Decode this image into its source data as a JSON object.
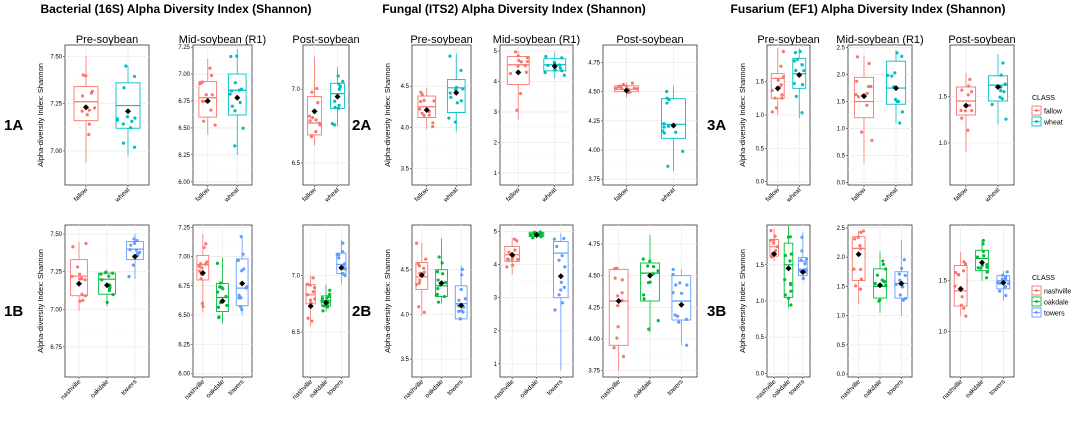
{
  "figure": {
    "groups": [
      {
        "title": "Bacterial (16S) Alpha Diversity Index (Shannon)",
        "row_labels": [
          "1A",
          "1B"
        ]
      },
      {
        "title": "Fungal (ITS2) Alpha Diversity Index (Shannon)",
        "row_labels": [
          "2A",
          "2B"
        ]
      },
      {
        "title": "Fusarium (EF1) Alpha Diversity Index (Shannon)",
        "row_labels": [
          "3A",
          "3B"
        ]
      }
    ],
    "legends": [
      {
        "title": "CLASS",
        "items": [
          {
            "label": "fallow",
            "color": "#F8766D"
          },
          {
            "label": "wheat",
            "color": "#00BFC4"
          }
        ]
      },
      {
        "title": "CLASS",
        "items": [
          {
            "label": "nashville",
            "color": "#F8766D"
          },
          {
            "label": "oakdale",
            "color": "#00BA38"
          },
          {
            "label": "towers",
            "color": "#619CFF"
          }
        ]
      }
    ]
  },
  "chart_data": [
    {
      "id": "1A-pre",
      "type": "box",
      "title": "Pre-soybean",
      "ylabel": "Alpha-diversity Index: Shannon",
      "ylim": [
        6.82,
        7.56
      ],
      "yticks": [
        7.0,
        7.25,
        7.5
      ],
      "categories": [
        "fallow",
        "wheat"
      ],
      "boxes": [
        {
          "q1": 7.16,
          "median": 7.26,
          "q3": 7.34,
          "lo": 6.94,
          "hi": 7.5,
          "mean": 7.23
        },
        {
          "q1": 7.12,
          "median": 7.24,
          "q3": 7.36,
          "lo": 6.97,
          "hi": 7.45,
          "mean": 7.21
        }
      ]
    },
    {
      "id": "1A-mid",
      "type": "box",
      "title": "Mid-soybean (R1)",
      "ylim": [
        5.97,
        7.27
      ],
      "yticks": [
        6.0,
        6.25,
        6.5,
        6.75,
        7.0,
        7.25
      ],
      "categories": [
        "fallow",
        "wheat"
      ],
      "boxes": [
        {
          "q1": 6.6,
          "median": 6.78,
          "q3": 6.93,
          "lo": 6.44,
          "hi": 7.14,
          "mean": 6.75
        },
        {
          "q1": 6.62,
          "median": 6.85,
          "q3": 7.0,
          "lo": 6.25,
          "hi": 7.23,
          "mean": 6.78
        }
      ]
    },
    {
      "id": "1A-post",
      "type": "box",
      "title": "Post-soybean",
      "ylim": [
        6.35,
        7.3
      ],
      "yticks": [
        6.5,
        7.0
      ],
      "categories": [
        "fallow",
        "wheat"
      ],
      "boxes": [
        {
          "q1": 6.69,
          "median": 6.77,
          "q3": 6.95,
          "lo": 6.62,
          "hi": 7.22,
          "mean": 6.85
        },
        {
          "q1": 6.87,
          "median": 6.97,
          "q3": 7.04,
          "lo": 6.75,
          "hi": 7.15,
          "mean": 6.95
        }
      ]
    },
    {
      "id": "1B-pre",
      "type": "box",
      "ylabel": "Alpha-diversity Index: Shannon",
      "ylim": [
        6.55,
        7.56
      ],
      "yticks": [
        6.75,
        7.0,
        7.25,
        7.5
      ],
      "categories": [
        "nashville",
        "oakdale",
        "towers"
      ],
      "boxes": [
        {
          "q1": 7.09,
          "median": 7.22,
          "q3": 7.33,
          "lo": 6.99,
          "hi": 7.45,
          "mean": 7.17
        },
        {
          "q1": 7.1,
          "median": 7.2,
          "q3": 7.24,
          "lo": 7.02,
          "hi": 7.26,
          "mean": 7.16
        },
        {
          "q1": 7.33,
          "median": 7.4,
          "q3": 7.45,
          "lo": 7.2,
          "hi": 7.5,
          "mean": 7.35
        }
      ]
    },
    {
      "id": "1B-mid",
      "type": "box",
      "ylim": [
        5.97,
        7.27
      ],
      "yticks": [
        6.0,
        6.25,
        6.5,
        6.75,
        7.0,
        7.25
      ],
      "categories": [
        "nashville",
        "oakdale",
        "towers"
      ],
      "boxes": [
        {
          "q1": 6.8,
          "median": 6.93,
          "q3": 7.01,
          "lo": 6.52,
          "hi": 7.19,
          "mean": 6.86
        },
        {
          "q1": 6.53,
          "median": 6.65,
          "q3": 6.77,
          "lo": 6.43,
          "hi": 6.99,
          "mean": 6.62
        },
        {
          "q1": 6.58,
          "median": 6.73,
          "q3": 6.98,
          "lo": 6.5,
          "hi": 7.18,
          "mean": 6.77
        }
      ]
    },
    {
      "id": "1B-post",
      "type": "box",
      "ylim": [
        6.1,
        7.45
      ],
      "yticks": [
        6.5,
        7.0
      ],
      "categories": [
        "nashville",
        "oakdale",
        "towers"
      ],
      "boxes": [
        {
          "q1": 6.75,
          "median": 6.83,
          "q3": 6.92,
          "lo": 6.55,
          "hi": 7.0,
          "mean": 6.73
        },
        {
          "q1": 6.73,
          "median": 6.78,
          "q3": 6.82,
          "lo": 6.68,
          "hi": 6.92,
          "mean": 6.76
        },
        {
          "q1": 7.02,
          "median": 7.1,
          "q3": 7.2,
          "lo": 6.92,
          "hi": 7.32,
          "mean": 7.07
        }
      ]
    },
    {
      "id": "2A-pre",
      "type": "box",
      "title": "Pre-soybean",
      "ylabel": "Alpha-diversity Index: Shannon",
      "ylim": [
        3.3,
        5.0
      ],
      "yticks": [
        3.5,
        4.0,
        4.5
      ],
      "categories": [
        "fallow",
        "wheat"
      ],
      "boxes": [
        {
          "q1": 4.12,
          "median": 4.25,
          "q3": 4.38,
          "lo": 3.98,
          "hi": 4.48,
          "mean": 4.21
        },
        {
          "q1": 4.18,
          "median": 4.48,
          "q3": 4.58,
          "lo": 3.95,
          "hi": 4.9,
          "mean": 4.42
        }
      ]
    },
    {
      "id": "2A-mid",
      "type": "box",
      "title": "Mid-soybean (R1)",
      "ylim": [
        0.6,
        5.2
      ],
      "yticks": [
        1,
        2,
        3,
        4,
        5
      ],
      "categories": [
        "fallow",
        "wheat"
      ],
      "boxes": [
        {
          "q1": 3.9,
          "median": 4.55,
          "q3": 4.82,
          "lo": 2.75,
          "hi": 5.0,
          "mean": 4.3
        },
        {
          "q1": 4.35,
          "median": 4.55,
          "q3": 4.75,
          "lo": 4.1,
          "hi": 4.95,
          "mean": 4.5
        }
      ]
    },
    {
      "id": "2A-post",
      "type": "box",
      "title": "Post-soybean",
      "ylim": [
        3.7,
        4.9
      ],
      "yticks": [
        3.75,
        4.0,
        4.25,
        4.5,
        4.75
      ],
      "categories": [
        "fallow",
        "wheat"
      ],
      "boxes": [
        {
          "q1": 4.5,
          "median": 4.52,
          "q3": 4.55,
          "lo": 4.45,
          "hi": 4.58,
          "mean": 4.51
        },
        {
          "q1": 4.1,
          "median": 4.22,
          "q3": 4.44,
          "lo": 3.82,
          "hi": 4.55,
          "mean": 4.21
        }
      ]
    },
    {
      "id": "2B-pre",
      "type": "box",
      "ylabel": "Alpha-diversity Index: Shannon",
      "ylim": [
        3.3,
        5.0
      ],
      "yticks": [
        3.5,
        4.0,
        4.5
      ],
      "categories": [
        "nashville",
        "oakdale",
        "towers"
      ],
      "boxes": [
        {
          "q1": 4.28,
          "median": 4.42,
          "q3": 4.58,
          "lo": 3.98,
          "hi": 4.8,
          "mean": 4.44
        },
        {
          "q1": 4.2,
          "median": 4.32,
          "q3": 4.5,
          "lo": 4.12,
          "hi": 4.85,
          "mean": 4.35
        },
        {
          "q1": 3.95,
          "median": 4.12,
          "q3": 4.32,
          "lo": 3.95,
          "hi": 4.55,
          "mean": 4.1
        }
      ]
    },
    {
      "id": "2B-mid",
      "type": "box",
      "ylim": [
        0.6,
        5.2
      ],
      "yticks": [
        1,
        2,
        3,
        4,
        5
      ],
      "categories": [
        "nashville",
        "oakdale",
        "towers"
      ],
      "boxes": [
        {
          "q1": 4.1,
          "median": 4.3,
          "q3": 4.55,
          "lo": 3.7,
          "hi": 4.8,
          "mean": 4.3
        },
        {
          "q1": 4.85,
          "median": 4.9,
          "q3": 4.98,
          "lo": 4.8,
          "hi": 5.0,
          "mean": 4.9
        },
        {
          "q1": 3.0,
          "median": 4.35,
          "q3": 4.7,
          "lo": 0.8,
          "hi": 4.95,
          "mean": 3.65
        }
      ]
    },
    {
      "id": "2B-post",
      "type": "box",
      "ylim": [
        3.7,
        4.9
      ],
      "yticks": [
        3.75,
        4.0,
        4.25,
        4.5,
        4.75
      ],
      "categories": [
        "nashville",
        "oakdale",
        "towers"
      ],
      "boxes": [
        {
          "q1": 3.95,
          "median": 4.3,
          "q3": 4.55,
          "lo": 3.75,
          "hi": 4.56,
          "mean": 4.3
        },
        {
          "q1": 4.3,
          "median": 4.52,
          "q3": 4.6,
          "lo": 4.05,
          "hi": 4.82,
          "mean": 4.5
        },
        {
          "q1": 4.15,
          "median": 4.3,
          "q3": 4.5,
          "lo": 3.95,
          "hi": 4.55,
          "mean": 4.27
        }
      ]
    },
    {
      "id": "3A-pre",
      "type": "box",
      "title": "Pre-soybean",
      "ylabel": "Alpha-diversity Index: Shannon",
      "ylim": [
        -0.05,
        2.05
      ],
      "yticks": [
        0.0,
        0.5,
        1.0,
        1.5
      ],
      "categories": [
        "fallow",
        "wheat"
      ],
      "boxes": [
        {
          "q1": 1.25,
          "median": 1.55,
          "q3": 1.62,
          "lo": 1.0,
          "hi": 2.0,
          "mean": 1.4
        },
        {
          "q1": 1.4,
          "median": 1.62,
          "q3": 1.85,
          "lo": 0.95,
          "hi": 2.0,
          "mean": 1.6
        }
      ]
    },
    {
      "id": "3A-mid",
      "type": "box",
      "title": "Mid-soybean (R1)",
      "ylim": [
        -0.05,
        2.55
      ],
      "yticks": [
        0.0,
        0.5,
        1.0,
        1.5,
        2.0,
        2.5
      ],
      "categories": [
        "fallow",
        "wheat"
      ],
      "boxes": [
        {
          "q1": 1.2,
          "median": 1.5,
          "q3": 1.95,
          "lo": 0.35,
          "hi": 2.35,
          "mean": 1.6
        },
        {
          "q1": 1.45,
          "median": 1.75,
          "q3": 2.25,
          "lo": 1.1,
          "hi": 2.45,
          "mean": 1.75
        }
      ]
    },
    {
      "id": "3A-post",
      "type": "box",
      "title": "Post-soybean",
      "ylim": [
        0.55,
        2.05
      ],
      "yticks": [
        1.0,
        1.5
      ],
      "categories": [
        "fallow",
        "wheat"
      ],
      "boxes": [
        {
          "q1": 1.3,
          "median": 1.45,
          "q3": 1.6,
          "lo": 0.9,
          "hi": 1.75,
          "mean": 1.4
        },
        {
          "q1": 1.45,
          "median": 1.62,
          "q3": 1.72,
          "lo": 1.2,
          "hi": 1.95,
          "mean": 1.6
        }
      ]
    },
    {
      "id": "3B-pre",
      "type": "box",
      "ylabel": "Alpha-diversity Index: Shannon",
      "ylim": [
        -0.05,
        2.05
      ],
      "yticks": [
        0.0,
        0.5,
        1.0,
        1.5
      ],
      "categories": [
        "nashville",
        "oakdale",
        "towers"
      ],
      "boxes": [
        {
          "q1": 1.62,
          "median": 1.75,
          "q3": 1.85,
          "lo": 1.55,
          "hi": 2.0,
          "mean": 1.65
        },
        {
          "q1": 1.05,
          "median": 1.5,
          "q3": 1.8,
          "lo": 0.9,
          "hi": 2.05,
          "mean": 1.45
        },
        {
          "q1": 1.35,
          "median": 1.55,
          "q3": 1.6,
          "lo": 1.3,
          "hi": 1.95,
          "mean": 1.4
        }
      ]
    },
    {
      "id": "3B-mid",
      "type": "box",
      "ylim": [
        -0.05,
        2.55
      ],
      "yticks": [
        0.0,
        0.5,
        1.0,
        1.5,
        2.0,
        2.5
      ],
      "categories": [
        "nashville",
        "oakdale",
        "towers"
      ],
      "boxes": [
        {
          "q1": 1.6,
          "median": 2.15,
          "q3": 2.35,
          "lo": 1.2,
          "hi": 2.45,
          "mean": 2.05
        },
        {
          "q1": 1.3,
          "median": 1.5,
          "q3": 1.8,
          "lo": 1.05,
          "hi": 2.1,
          "mean": 1.52
        },
        {
          "q1": 1.3,
          "median": 1.55,
          "q3": 1.75,
          "lo": 1.0,
          "hi": 2.3,
          "mean": 1.55
        }
      ]
    },
    {
      "id": "3B-post",
      "type": "box",
      "ylim": [
        0.55,
        2.05
      ],
      "yticks": [
        1.0,
        1.5
      ],
      "categories": [
        "nashville",
        "oakdale",
        "towers"
      ],
      "boxes": [
        {
          "q1": 1.25,
          "median": 1.4,
          "q3": 1.65,
          "lo": 1.15,
          "hi": 1.78,
          "mean": 1.42
        },
        {
          "q1": 1.6,
          "median": 1.72,
          "q3": 1.8,
          "lo": 1.5,
          "hi": 1.9,
          "mean": 1.68
        },
        {
          "q1": 1.42,
          "median": 1.5,
          "q3": 1.55,
          "lo": 1.3,
          "hi": 1.6,
          "mean": 1.48
        }
      ]
    }
  ]
}
